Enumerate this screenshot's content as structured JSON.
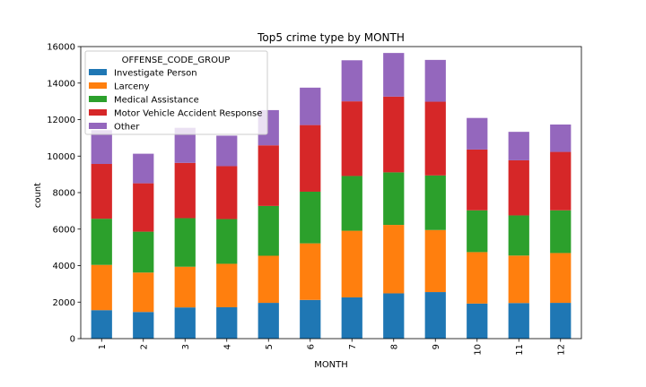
{
  "chart_data": {
    "type": "bar",
    "stacked": true,
    "title": "Top5 crime type by MONTH",
    "xlabel": "MONTH",
    "ylabel": "count",
    "ylim": [
      0,
      16000
    ],
    "yticks": [
      "0",
      "2000",
      "4000",
      "6000",
      "8000",
      "10000",
      "12000",
      "14000",
      "16000"
    ],
    "categories": [
      "1",
      "2",
      "3",
      "4",
      "5",
      "6",
      "7",
      "8",
      "9",
      "10",
      "11",
      "12"
    ],
    "legend_title": "OFFENSE_CODE_GROUP",
    "legend_position": "upper-left",
    "grid": false,
    "series": [
      {
        "name": "Investigate Person",
        "color": "#1f77b4",
        "values": [
          1560,
          1460,
          1710,
          1720,
          1960,
          2120,
          2260,
          2480,
          2550,
          1920,
          1950,
          1960
        ]
      },
      {
        "name": "Larceny",
        "color": "#ff7f0e",
        "values": [
          2480,
          2160,
          2230,
          2380,
          2580,
          3100,
          3650,
          3750,
          3400,
          2820,
          2600,
          2730
        ]
      },
      {
        "name": "Medical Assistance",
        "color": "#2ca02c",
        "values": [
          2530,
          2240,
          2660,
          2450,
          2730,
          2830,
          3000,
          2880,
          2990,
          2290,
          2200,
          2340
        ]
      },
      {
        "name": "Motor Vehicle Accident Response",
        "color": "#d62728",
        "values": [
          3000,
          2650,
          3030,
          2900,
          3320,
          3650,
          4090,
          4150,
          4040,
          3330,
          3020,
          3200
        ]
      },
      {
        "name": "Other",
        "color": "#9467bd",
        "values": [
          1850,
          1620,
          1920,
          1670,
          1930,
          2050,
          2250,
          2390,
          2290,
          1730,
          1560,
          1500
        ]
      }
    ]
  }
}
